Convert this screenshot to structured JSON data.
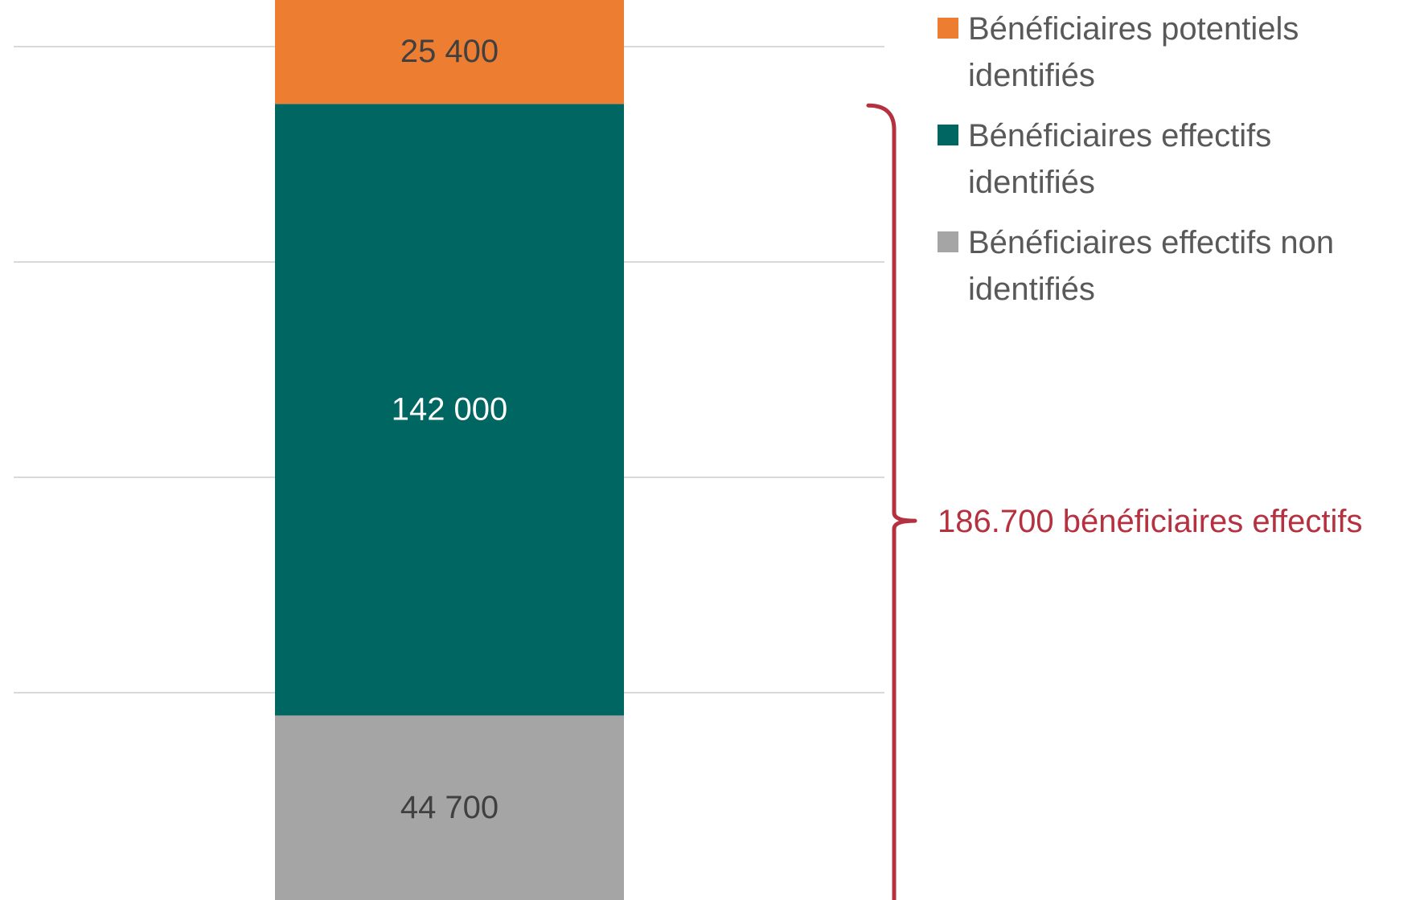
{
  "chart_data": {
    "type": "bar",
    "stacked": true,
    "grid": true,
    "legend_position": "top-right",
    "ylim": [
      0,
      250000
    ],
    "series": [
      {
        "name": "Bénéficiaires effectifs non identifiés",
        "value": 44700,
        "label": "44 700",
        "color": "#A5A5A5",
        "label_color": "#404040"
      },
      {
        "name": "Bénéficiaires effectifs identifiés",
        "value": 142000,
        "label": "142 000",
        "color": "#006661",
        "label_color": "#ffffff"
      },
      {
        "name": "Bénéficiaires potentiels identifiés",
        "value": 25400,
        "label": "25 400",
        "color": "#ED7D31",
        "label_color": "#404040"
      }
    ],
    "legend": [
      {
        "lines": [
          "Bénéficiaires potentiels",
          "identifiés"
        ],
        "color": "#ED7D31"
      },
      {
        "lines": [
          "Bénéficiaires effectifs",
          "identifiés"
        ],
        "color": "#006661"
      },
      {
        "lines": [
          "Bénéficiaires effectifs non",
          "identifiés"
        ],
        "color": "#A5A5A5"
      }
    ],
    "annotation": {
      "text": "186.700 bénéficiaires effectifs",
      "color": "#B5313F",
      "range": [
        0,
        186700
      ]
    }
  }
}
